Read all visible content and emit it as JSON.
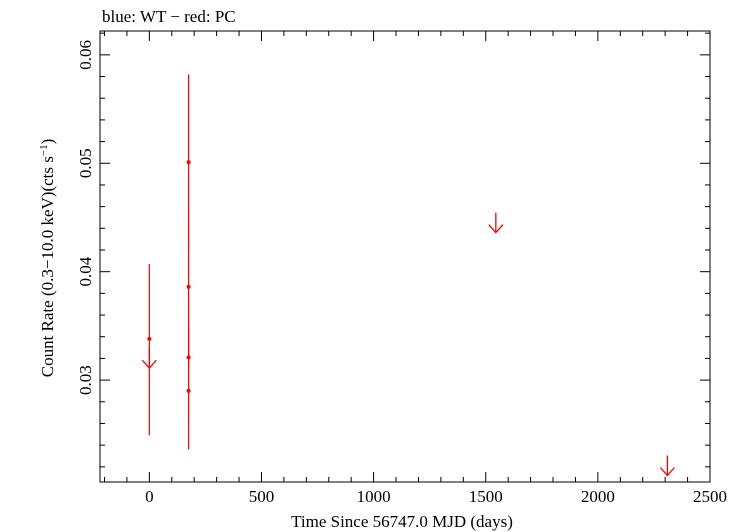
{
  "chart_data": {
    "type": "scatter",
    "title": "blue: WT − red: PC",
    "xlabel": "Time Since 56747.0 MJD (days)",
    "ylabel_main": "Count Rate (0.3−10.0 keV)(cts s",
    "ylabel_sup": "−1",
    "ylabel_close": ")",
    "xlim": [
      -220,
      2500
    ],
    "ylim": [
      0.0206,
      0.0622
    ],
    "x_ticks": [
      0,
      500,
      1000,
      1500,
      2000,
      2500
    ],
    "x_tick_labels": [
      "0",
      "500",
      "1000",
      "1500",
      "2000",
      "2500"
    ],
    "x_minor_step": 100,
    "y_ticks": [
      0.03,
      0.04,
      0.05,
      0.06
    ],
    "y_tick_labels": [
      "0.03",
      "0.04",
      "0.05",
      "0.06"
    ],
    "y_minor_step": 0.002,
    "grid": false,
    "series": [
      {
        "color": "#ff0000",
        "points": [
          {
            "x": 0,
            "y": 0.0338,
            "ylo": 0.0249,
            "yhi": 0.0407
          },
          {
            "x": 175,
            "y": 0.0501,
            "ylo": 0.042,
            "yhi": 0.0582
          },
          {
            "x": 175,
            "y": 0.0386,
            "ylo": 0.0312,
            "yhi": 0.0458
          },
          {
            "x": 175,
            "y": 0.0321,
            "ylo": 0.0265,
            "yhi": 0.0378
          },
          {
            "x": 175,
            "y": 0.029,
            "ylo": 0.0236,
            "yhi": 0.0348
          }
        ],
        "upper_limits": [
          {
            "x": 0,
            "y": 0.0311
          },
          {
            "x": 1545,
            "y": 0.0436
          },
          {
            "x": 2310,
            "y": 0.0212
          }
        ]
      }
    ]
  }
}
